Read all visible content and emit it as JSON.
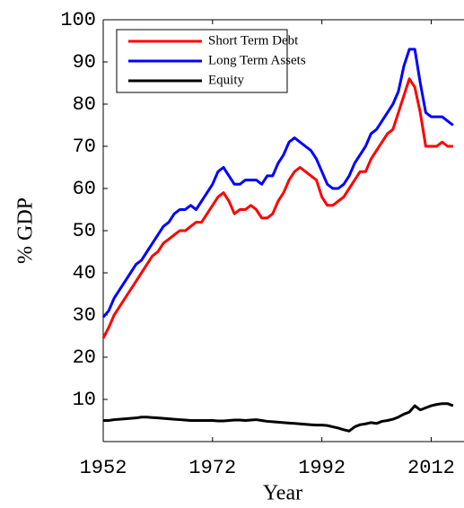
{
  "chart_data": {
    "type": "line",
    "xlabel": "Year",
    "ylabel": "% GDP",
    "x": [
      1952,
      1953,
      1954,
      1955,
      1956,
      1957,
      1958,
      1959,
      1960,
      1961,
      1962,
      1963,
      1964,
      1965,
      1966,
      1967,
      1968,
      1969,
      1970,
      1971,
      1972,
      1973,
      1974,
      1975,
      1976,
      1977,
      1978,
      1979,
      1980,
      1981,
      1982,
      1983,
      1984,
      1985,
      1986,
      1987,
      1988,
      1989,
      1990,
      1991,
      1992,
      1993,
      1994,
      1995,
      1996,
      1997,
      1998,
      1999,
      2000,
      2001,
      2002,
      2003,
      2004,
      2005,
      2006,
      2007,
      2008,
      2009,
      2010,
      2011,
      2012,
      2013,
      2014,
      2015,
      2016
    ],
    "series": [
      {
        "name": "Short Term Debt",
        "color": "#ff0000",
        "values": [
          24.5,
          27,
          30,
          32,
          34,
          36,
          38,
          40,
          42,
          44,
          45,
          47,
          48,
          49,
          50,
          50,
          51,
          52,
          52,
          54,
          56,
          58,
          59,
          57,
          54,
          55,
          55,
          56,
          55,
          53,
          53,
          54,
          57,
          59,
          62,
          64,
          65,
          64,
          63,
          62,
          58,
          56,
          56,
          57,
          58,
          60,
          62,
          64,
          64,
          67,
          69,
          71,
          73,
          74,
          78,
          82,
          86,
          84,
          78,
          70,
          70,
          70,
          71,
          70,
          70
        ]
      },
      {
        "name": "Long Term Assets",
        "color": "#0000ff",
        "values": [
          29.5,
          31,
          34,
          36,
          38,
          40,
          42,
          43,
          45,
          47,
          49,
          51,
          52,
          54,
          55,
          55,
          56,
          55,
          57,
          59,
          61,
          64,
          65,
          63,
          61,
          61,
          62,
          62,
          62,
          61,
          63,
          63,
          66,
          68,
          71,
          72,
          71,
          70,
          69,
          67,
          64,
          61,
          60,
          60,
          61,
          63,
          66,
          68,
          70,
          73,
          74,
          76,
          78,
          80,
          83,
          89,
          93,
          93,
          85,
          78,
          77,
          77,
          77,
          76,
          75
        ]
      },
      {
        "name": "Equity",
        "color": "#000000",
        "values": [
          5,
          5,
          5.2,
          5.3,
          5.4,
          5.5,
          5.6,
          5.8,
          5.8,
          5.7,
          5.6,
          5.5,
          5.4,
          5.3,
          5.2,
          5.1,
          5.0,
          5.0,
          5.0,
          5.0,
          5.0,
          4.9,
          4.9,
          5.0,
          5.1,
          5.1,
          5.0,
          5.1,
          5.2,
          5.0,
          4.8,
          4.7,
          4.6,
          4.5,
          4.4,
          4.3,
          4.2,
          4.1,
          4.0,
          3.9,
          3.9,
          3.8,
          3.5,
          3.2,
          2.8,
          2.5,
          3.5,
          4.0,
          4.2,
          4.5,
          4.3,
          4.8,
          5.0,
          5.3,
          5.8,
          6.5,
          7.0,
          8.5,
          7.5,
          8.0,
          8.5,
          8.8,
          9.0,
          9.0,
          8.5
        ]
      }
    ],
    "xlim": [
      1952,
      2018
    ],
    "xticks": [
      1952,
      1972,
      1992,
      2012
    ],
    "ylim": [
      0,
      100
    ],
    "yticks": [
      10,
      20,
      30,
      40,
      50,
      60,
      70,
      80,
      90,
      100
    ],
    "legend": "upper-left",
    "grid": false
  }
}
